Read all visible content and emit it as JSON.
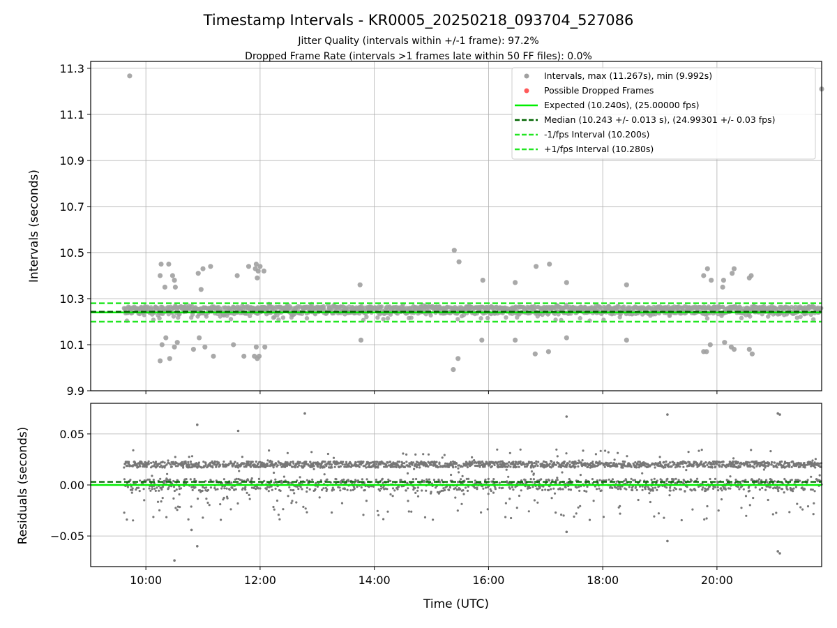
{
  "figure": {
    "title": "Timestamp Intervals - KR0005_20250218_093704_527086",
    "subtitle1": "Jitter Quality (intervals within +/-1 frame): 97.2%",
    "subtitle2": "Dropped Frame Rate (intervals >1 frames late within 50 FF files): 0.0%"
  },
  "colors": {
    "intervals": "#a0a0a0",
    "dropped": "#ff5a5a",
    "expected": "#00ee00",
    "median": "#006400",
    "fps_bounds": "#22e622",
    "residuals": "#777777"
  },
  "chart_data": [
    {
      "type": "scatter",
      "name": "intervals",
      "xlabel": "",
      "ylabel": "Intervals (seconds)",
      "xlim": [
        "09:02",
        "21:50"
      ],
      "ylim": [
        9.9,
        11.33
      ],
      "yticks": [
        9.9,
        10.1,
        10.3,
        10.5,
        10.7,
        10.9,
        11.1,
        11.3
      ],
      "ytick_labels": [
        "9.9",
        "10.1",
        "10.3",
        "10.5",
        "10.7",
        "10.9",
        "11.1",
        "11.3"
      ],
      "xticks": [
        "10:00",
        "12:00",
        "14:00",
        "16:00",
        "18:00",
        "20:00"
      ],
      "grid": true,
      "legend_position": "top-right",
      "data_span": [
        "09:37",
        "21:50"
      ],
      "lines": [
        {
          "name": "Expected (10.240s), (25.00000 fps)",
          "y": 10.24,
          "style": "solid"
        },
        {
          "name": "Median (10.243 +/- 0.013 s), (24.99301 +/- 0.03 fps)",
          "y": 10.243,
          "style": "dashed"
        },
        {
          "name": "-1/fps Interval (10.200s)",
          "y": 10.2,
          "style": "dashed"
        },
        {
          "name": "+1/fps Interval (10.280s)",
          "y": 10.28,
          "style": "dashed"
        }
      ],
      "series": [
        {
          "name": "Intervals, max (11.267s), min (9.992s)",
          "marker": "circle"
        },
        {
          "name": "Possible Dropped Frames",
          "marker": "circle",
          "points": []
        }
      ],
      "outliers": [
        {
          "x": "09:43",
          "y": 11.267
        },
        {
          "x": "21:50",
          "y": 11.21
        },
        {
          "x": "10:16",
          "y": 10.45
        },
        {
          "x": "10:24",
          "y": 10.45
        },
        {
          "x": "10:15",
          "y": 10.4
        },
        {
          "x": "10:20",
          "y": 10.35
        },
        {
          "x": "10:28",
          "y": 10.4
        },
        {
          "x": "10:30",
          "y": 10.38
        },
        {
          "x": "10:31",
          "y": 10.35
        },
        {
          "x": "10:55",
          "y": 10.41
        },
        {
          "x": "11:00",
          "y": 10.43
        },
        {
          "x": "11:08",
          "y": 10.44
        },
        {
          "x": "10:58",
          "y": 10.34
        },
        {
          "x": "11:36",
          "y": 10.4
        },
        {
          "x": "11:48",
          "y": 10.44
        },
        {
          "x": "11:55",
          "y": 10.43
        },
        {
          "x": "11:56",
          "y": 10.45
        },
        {
          "x": "11:58",
          "y": 10.42
        },
        {
          "x": "12:04",
          "y": 10.42
        },
        {
          "x": "11:57",
          "y": 10.39
        },
        {
          "x": "12:00",
          "y": 10.44
        },
        {
          "x": "13:45",
          "y": 10.36
        },
        {
          "x": "15:24",
          "y": 10.51
        },
        {
          "x": "15:29",
          "y": 10.46
        },
        {
          "x": "15:54",
          "y": 10.38
        },
        {
          "x": "16:28",
          "y": 10.37
        },
        {
          "x": "16:50",
          "y": 10.44
        },
        {
          "x": "17:04",
          "y": 10.45
        },
        {
          "x": "17:22",
          "y": 10.37
        },
        {
          "x": "18:25",
          "y": 10.36
        },
        {
          "x": "19:46",
          "y": 10.4
        },
        {
          "x": "19:50",
          "y": 10.43
        },
        {
          "x": "19:54",
          "y": 10.38
        },
        {
          "x": "20:06",
          "y": 10.35
        },
        {
          "x": "20:07",
          "y": 10.38
        },
        {
          "x": "20:16",
          "y": 10.41
        },
        {
          "x": "20:18",
          "y": 10.43
        },
        {
          "x": "20:34",
          "y": 10.39
        },
        {
          "x": "20:36",
          "y": 10.4
        },
        {
          "x": "10:15",
          "y": 10.03
        },
        {
          "x": "10:17",
          "y": 10.1
        },
        {
          "x": "10:21",
          "y": 10.13
        },
        {
          "x": "10:25",
          "y": 10.04
        },
        {
          "x": "10:30",
          "y": 10.09
        },
        {
          "x": "10:33",
          "y": 10.11
        },
        {
          "x": "10:50",
          "y": 10.08
        },
        {
          "x": "10:56",
          "y": 10.13
        },
        {
          "x": "11:02",
          "y": 10.09
        },
        {
          "x": "11:11",
          "y": 10.05
        },
        {
          "x": "11:32",
          "y": 10.1
        },
        {
          "x": "11:43",
          "y": 10.05
        },
        {
          "x": "11:54",
          "y": 10.05
        },
        {
          "x": "11:56",
          "y": 10.09
        },
        {
          "x": "11:57",
          "y": 10.04
        },
        {
          "x": "11:59",
          "y": 10.05
        },
        {
          "x": "12:05",
          "y": 10.09
        },
        {
          "x": "13:46",
          "y": 10.12
        },
        {
          "x": "15:23",
          "y": 9.992
        },
        {
          "x": "15:28",
          "y": 10.04
        },
        {
          "x": "15:53",
          "y": 10.12
        },
        {
          "x": "16:28",
          "y": 10.12
        },
        {
          "x": "16:49",
          "y": 10.06
        },
        {
          "x": "17:03",
          "y": 10.07
        },
        {
          "x": "17:22",
          "y": 10.13
        },
        {
          "x": "18:25",
          "y": 10.12
        },
        {
          "x": "19:46",
          "y": 10.07
        },
        {
          "x": "19:49",
          "y": 10.07
        },
        {
          "x": "19:53",
          "y": 10.1
        },
        {
          "x": "20:08",
          "y": 10.11
        },
        {
          "x": "20:15",
          "y": 10.09
        },
        {
          "x": "20:18",
          "y": 10.08
        },
        {
          "x": "20:34",
          "y": 10.08
        },
        {
          "x": "20:37",
          "y": 10.06
        }
      ]
    },
    {
      "type": "scatter",
      "name": "residuals",
      "xlabel": "Time (UTC)",
      "ylabel": "Residuals (seconds)",
      "xlim": [
        "09:02",
        "21:50"
      ],
      "ylim": [
        -0.08,
        0.08
      ],
      "yticks": [
        -0.05,
        0.0,
        0.05
      ],
      "ytick_labels": [
        "−0.05",
        "0.00",
        "0.05"
      ],
      "xticks": [
        "10:00",
        "12:00",
        "14:00",
        "16:00",
        "18:00",
        "20:00"
      ],
      "grid": true,
      "lines": [
        {
          "name": "expected",
          "y": 0.0,
          "style": "solid"
        },
        {
          "name": "median",
          "y": 0.003,
          "style": "dashed"
        }
      ],
      "outliers": [
        {
          "x": "12:47",
          "y": 0.07
        },
        {
          "x": "17:22",
          "y": 0.067
        },
        {
          "x": "19:08",
          "y": 0.069
        },
        {
          "x": "21:04",
          "y": 0.07
        },
        {
          "x": "21:06",
          "y": 0.069
        },
        {
          "x": "10:54",
          "y": 0.059
        },
        {
          "x": "11:37",
          "y": 0.053
        },
        {
          "x": "10:30",
          "y": -0.074
        },
        {
          "x": "10:54",
          "y": -0.06
        },
        {
          "x": "10:48",
          "y": -0.044
        },
        {
          "x": "17:22",
          "y": -0.046
        },
        {
          "x": "19:08",
          "y": -0.055
        },
        {
          "x": "21:04",
          "y": -0.065
        },
        {
          "x": "21:06",
          "y": -0.067
        }
      ]
    }
  ]
}
